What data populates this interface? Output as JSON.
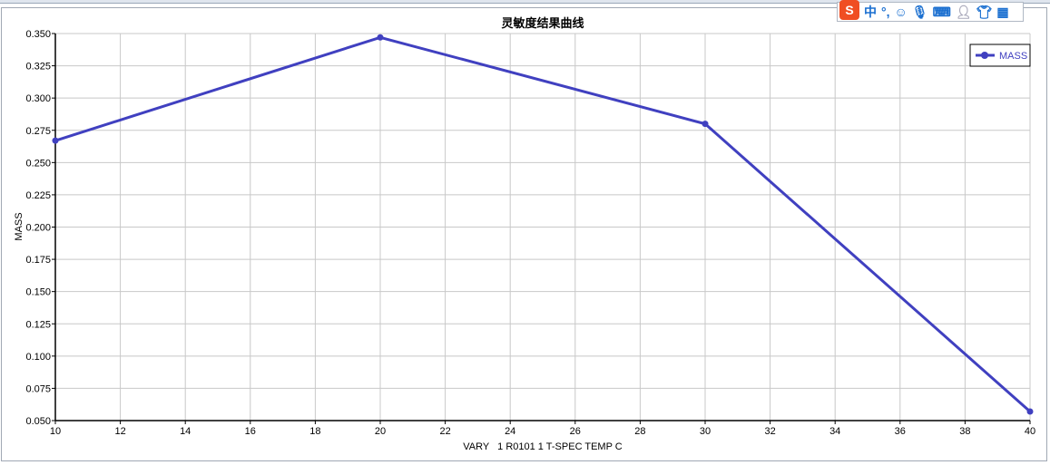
{
  "chart_data": {
    "type": "line",
    "title": "灵敏度结果曲线",
    "xlabel": "VARY   1 R0101 1 T-SPEC TEMP C",
    "ylabel": "MASS",
    "xlim": [
      10,
      40
    ],
    "ylim": [
      0.05,
      0.35
    ],
    "xticks": [
      "10",
      "12",
      "14",
      "16",
      "18",
      "20",
      "22",
      "24",
      "26",
      "28",
      "30",
      "32",
      "34",
      "36",
      "38",
      "40"
    ],
    "yticks": [
      "0.050",
      "0.075",
      "0.100",
      "0.125",
      "0.150",
      "0.175",
      "0.200",
      "0.225",
      "0.250",
      "0.275",
      "0.300",
      "0.325",
      "0.350"
    ],
    "grid": true,
    "legend": "top-right",
    "series": [
      {
        "name": "MASS",
        "color": "#4040c0",
        "x": [
          10,
          20,
          30,
          40
        ],
        "y": [
          0.267,
          0.347,
          0.28,
          0.057
        ]
      }
    ]
  },
  "ime_toolbar": {
    "logo": "S",
    "mode": "中",
    "punct": "°,",
    "icons": [
      "emoji-icon",
      "microphone-icon",
      "keyboard-icon",
      "user-icon",
      "skin-icon",
      "grid-icon"
    ]
  }
}
